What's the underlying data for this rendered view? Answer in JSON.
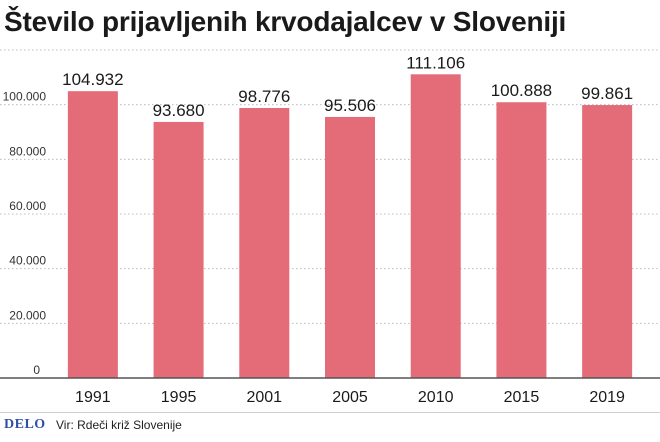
{
  "title": "Število prijavljenih krvodajalcev v Sloveniji",
  "footer": {
    "logo": "DELO",
    "source": "Vir: Rdeči križ Slovenije"
  },
  "colors": {
    "bar": "#e46b78",
    "grid": "#bdbdbd",
    "axis": "#555555",
    "text": "#1a1a1a"
  },
  "chart_data": {
    "type": "bar",
    "categories": [
      "1991",
      "1995",
      "2001",
      "2005",
      "2010",
      "2015",
      "2019"
    ],
    "values": [
      104932,
      93680,
      98776,
      95506,
      111106,
      100888,
      99861
    ],
    "value_labels": [
      "104.932",
      "93.680",
      "98.776",
      "95.506",
      "111.106",
      "100.888",
      "99.861"
    ],
    "yticks": [
      0,
      20000,
      40000,
      60000,
      80000,
      100000
    ],
    "ytick_labels": [
      "0",
      "20.000",
      "40.000",
      "60.000",
      "80.000",
      "100.000"
    ],
    "ylim": [
      0,
      120000
    ],
    "grid": true,
    "xlabel": "",
    "ylabel": ""
  }
}
